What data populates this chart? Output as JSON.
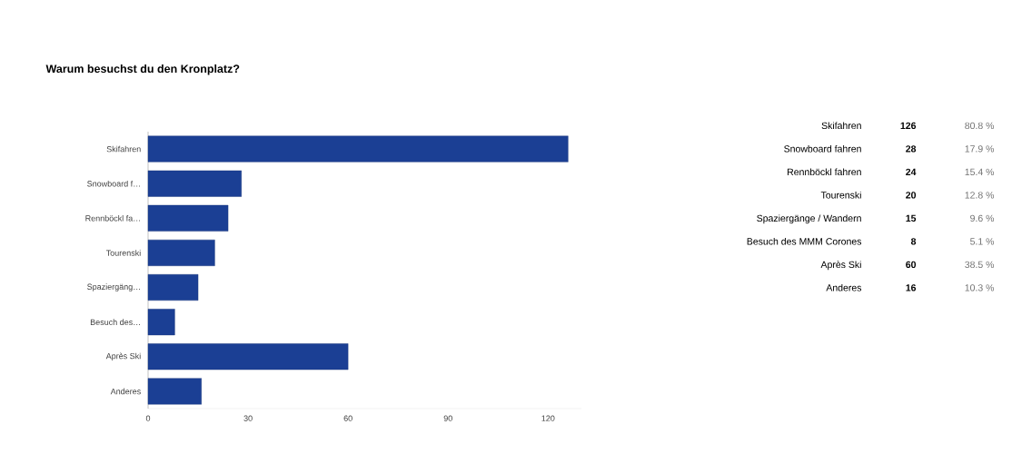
{
  "chart_data": {
    "type": "bar",
    "orientation": "horizontal",
    "title": "Warum besuchst du den Kronplatz?",
    "categories": [
      "Skifahren",
      "Snowboard f…",
      "Rennböckl fa…",
      "Tourenski",
      "Spaziergäng…",
      "Besuch des…",
      "Après Ski",
      "Anderes"
    ],
    "values": [
      126,
      28,
      24,
      20,
      15,
      8,
      60,
      16
    ],
    "color": "#1b3f94",
    "xlim": [
      0,
      130
    ],
    "xticks": [
      0,
      30,
      60,
      90,
      120
    ],
    "grid": false,
    "annotations": [
      "Skifahren",
      "Snowboard fahren",
      "Rennböckl fahren",
      "Tourenski",
      "Spaziergänge / Wandern",
      "Besuch des MMM Corones",
      "Après Ski",
      "Anderes",
      "126",
      "28",
      "24",
      "20",
      "15",
      "8",
      "60",
      "16",
      "80.8 %",
      "17.9 %",
      "15.4 %",
      "12.8 %",
      "9.6 %",
      "5.1 %",
      "38.5 %",
      "10.3 %"
    ]
  }
}
